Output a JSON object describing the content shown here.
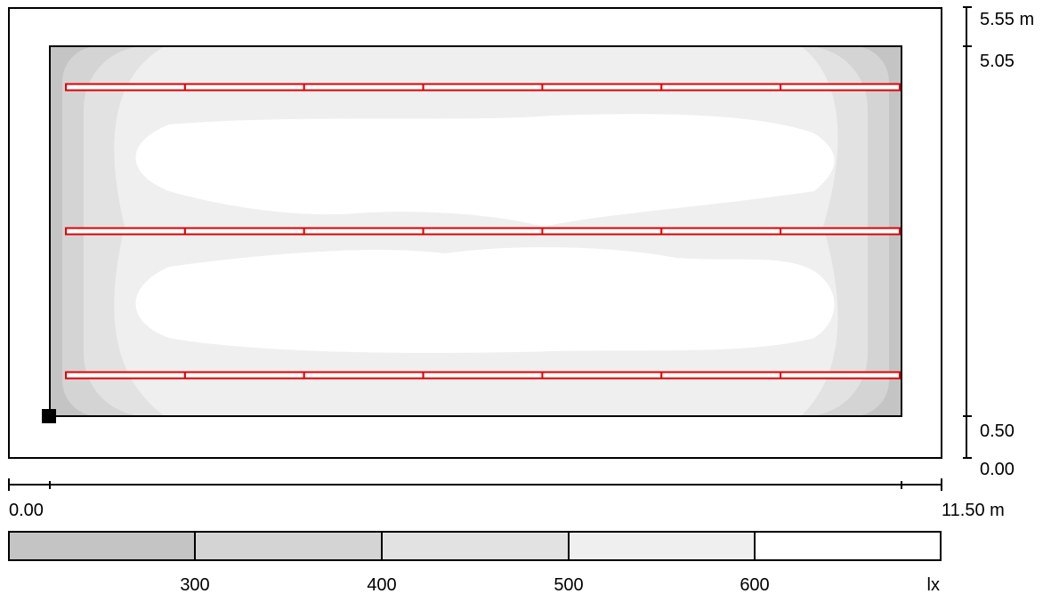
{
  "right_axis": {
    "labels": [
      "5.55 m",
      "5.05",
      "0.50",
      "0.00"
    ]
  },
  "bottom_axis": {
    "start_label": "0.00",
    "end_label": "11.50 m"
  },
  "legend": {
    "labels": [
      "300",
      "400",
      "500",
      "600"
    ],
    "unit": "lx",
    "colors": [
      "#c4c4c4",
      "#d4d4d4",
      "#e2e2e2",
      "#efefef",
      "#ffffff"
    ]
  },
  "luminaire_rows": 3,
  "luminaires_per_row": 7,
  "colors": {
    "luminaire": "#e00000",
    "outline": "#000000"
  }
}
